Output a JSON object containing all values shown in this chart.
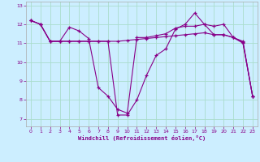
{
  "xlabel": "Windchill (Refroidissement éolien,°C)",
  "background_color": "#cceeff",
  "grid_color": "#aaddcc",
  "line_color": "#880088",
  "xlim": [
    -0.5,
    23.5
  ],
  "ylim": [
    6.6,
    13.2
  ],
  "xticks": [
    0,
    1,
    2,
    3,
    4,
    5,
    6,
    7,
    8,
    9,
    10,
    11,
    12,
    13,
    14,
    15,
    16,
    17,
    18,
    19,
    20,
    21,
    22,
    23
  ],
  "yticks": [
    7,
    8,
    9,
    10,
    11,
    12,
    13
  ],
  "series1_x": [
    0,
    1,
    2,
    3,
    4,
    5,
    6,
    7,
    8,
    9,
    10,
    11,
    12,
    13,
    14,
    15,
    16,
    17,
    18,
    19,
    20,
    21,
    22,
    23
  ],
  "series1_y": [
    12.2,
    12.0,
    11.1,
    11.1,
    11.85,
    11.65,
    11.25,
    8.65,
    8.2,
    7.5,
    7.3,
    11.3,
    11.3,
    11.4,
    11.5,
    11.8,
    11.9,
    11.9,
    12.0,
    11.45,
    11.45,
    11.3,
    11.1,
    8.2
  ],
  "series2_x": [
    0,
    1,
    2,
    3,
    4,
    5,
    6,
    7,
    8,
    9,
    10,
    11,
    12,
    13,
    14,
    15,
    16,
    17,
    18,
    19,
    20,
    21,
    22,
    23
  ],
  "series2_y": [
    12.2,
    12.0,
    11.1,
    11.1,
    11.1,
    11.1,
    11.1,
    11.1,
    11.1,
    11.1,
    11.15,
    11.2,
    11.25,
    11.3,
    11.35,
    11.4,
    11.45,
    11.5,
    11.55,
    11.45,
    11.45,
    11.3,
    11.05,
    8.2
  ],
  "series3_x": [
    0,
    1,
    2,
    3,
    4,
    5,
    6,
    7,
    8,
    9,
    10,
    11,
    12,
    13,
    14,
    15,
    16,
    17,
    18,
    19,
    20,
    21,
    22,
    23
  ],
  "series3_y": [
    12.2,
    12.0,
    11.1,
    11.1,
    11.1,
    11.1,
    11.1,
    11.1,
    11.1,
    7.2,
    7.2,
    8.0,
    9.3,
    10.35,
    10.7,
    11.75,
    12.0,
    12.6,
    12.0,
    11.9,
    12.0,
    11.3,
    11.0,
    8.2
  ]
}
